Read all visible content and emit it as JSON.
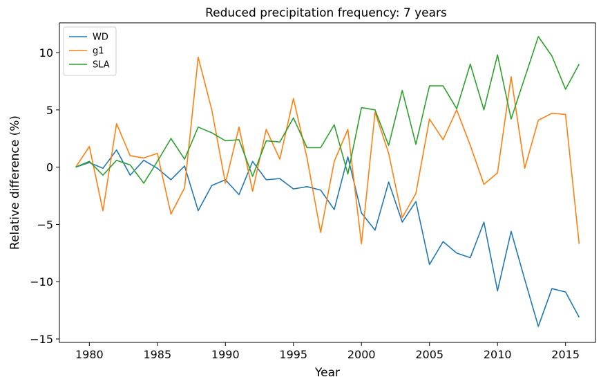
{
  "chart_data": {
    "type": "line",
    "title": "Reduced precipitation frequency: 7 years",
    "xlabel": "Year",
    "ylabel": "Relative difference (%)",
    "xlim": [
      1977.8,
      2017.2
    ],
    "ylim": [
      -15.3,
      12.6
    ],
    "xticks": [
      1980,
      1985,
      1990,
      1995,
      2000,
      2005,
      2010,
      2015
    ],
    "yticks": [
      -15,
      -10,
      -5,
      0,
      5,
      10
    ],
    "ytick_labels": [
      "−15",
      "−10",
      "−5",
      "0",
      "5",
      "10"
    ],
    "grid": false,
    "legend_position": "top-left",
    "x": [
      1979,
      1980,
      1981,
      1982,
      1983,
      1984,
      1985,
      1986,
      1987,
      1988,
      1989,
      1990,
      1991,
      1992,
      1993,
      1994,
      1995,
      1996,
      1997,
      1998,
      1999,
      2000,
      2001,
      2002,
      2003,
      2004,
      2005,
      2006,
      2007,
      2008,
      2009,
      2010,
      2011,
      2012,
      2013,
      2014,
      2015,
      2016
    ],
    "series": [
      {
        "name": "WD",
        "color": "#1f77b4",
        "values": [
          0.0,
          0.4,
          -0.1,
          1.5,
          -0.7,
          0.6,
          -0.1,
          -1.1,
          0.1,
          -3.8,
          -1.6,
          -1.1,
          -2.4,
          0.5,
          -1.1,
          -1.0,
          -1.9,
          -1.7,
          -2.0,
          -3.7,
          0.9,
          -4.0,
          -5.5,
          -1.3,
          -4.8,
          -3.0,
          -8.5,
          -6.5,
          -7.5,
          -7.9,
          -4.8,
          -10.8,
          -5.6,
          -9.8,
          -13.9,
          -10.6,
          -10.9,
          -13.1
        ]
      },
      {
        "name": "g1",
        "color": "#ff7f0e",
        "values": [
          0.0,
          1.8,
          -3.8,
          3.8,
          1.0,
          0.8,
          1.2,
          -4.1,
          -1.8,
          9.6,
          5.0,
          -1.4,
          3.5,
          -2.1,
          3.3,
          0.7,
          6.0,
          0.8,
          -5.7,
          0.5,
          3.3,
          -6.7,
          4.8,
          1.2,
          -4.4,
          -2.3,
          4.2,
          2.4,
          5.0,
          1.9,
          -1.5,
          -0.5,
          7.9,
          -0.1,
          4.1,
          4.7,
          4.6,
          -6.7
        ]
      },
      {
        "name": "SLA",
        "color": "#2ca02c",
        "values": [
          0.0,
          0.5,
          -0.7,
          0.6,
          0.2,
          -1.4,
          0.5,
          2.5,
          0.7,
          3.5,
          3.0,
          2.3,
          2.4,
          -0.8,
          2.3,
          2.2,
          4.3,
          1.7,
          1.7,
          3.7,
          -0.6,
          5.2,
          5.0,
          1.9,
          6.7,
          2.0,
          7.1,
          7.1,
          5.1,
          9.0,
          5.0,
          9.8,
          4.2,
          7.8,
          11.4,
          9.7,
          6.8,
          9.0
        ]
      }
    ]
  }
}
